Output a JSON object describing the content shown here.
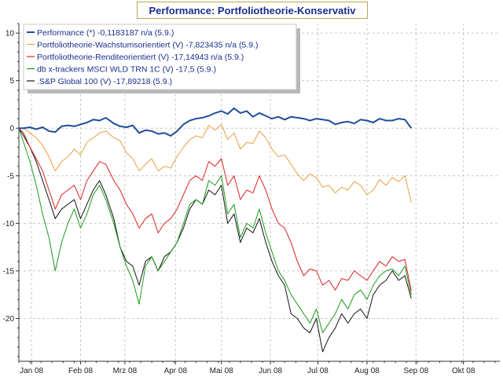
{
  "chart_data": {
    "type": "line",
    "title": "Performance: Portfoliotheorie-Konservativ",
    "xlabel": "",
    "ylabel": "",
    "x_range": [
      "2008-01-01",
      "2008-10-31"
    ],
    "ylim": [
      -24.5,
      11
    ],
    "yticks": [
      10,
      5,
      0,
      -5,
      -10,
      -15,
      -20
    ],
    "xticks": [
      {
        "label": "Jan 08",
        "date": "2008-01-09"
      },
      {
        "label": "Feb 08",
        "date": "2008-02-09"
      },
      {
        "label": "Mrz 08",
        "date": "2008-03-08"
      },
      {
        "label": "Apr 08",
        "date": "2008-04-09"
      },
      {
        "label": "Mai 08",
        "date": "2008-05-08"
      },
      {
        "label": "Jun 08",
        "date": "2008-06-08"
      },
      {
        "label": "Jul 08",
        "date": "2008-07-08"
      },
      {
        "label": "Aug 08",
        "date": "2008-08-08"
      },
      {
        "label": "Sep 08",
        "date": "2008-09-08"
      },
      {
        "label": "Okt 08",
        "date": "2008-10-08"
      }
    ],
    "grid": true,
    "legend_position": "top-left",
    "series": [
      {
        "name": "Performance (*) -0,1183187 n/a (5.9.)",
        "color": "#1f4e9c",
        "x": [
          "2008-01-01",
          "2008-01-04",
          "2008-01-08",
          "2008-01-12",
          "2008-01-16",
          "2008-01-20",
          "2008-01-24",
          "2008-01-28",
          "2008-02-01",
          "2008-02-05",
          "2008-02-09",
          "2008-02-13",
          "2008-02-17",
          "2008-02-21",
          "2008-02-25",
          "2008-03-01",
          "2008-03-05",
          "2008-03-09",
          "2008-03-13",
          "2008-03-17",
          "2008-03-21",
          "2008-03-25",
          "2008-03-29",
          "2008-04-02",
          "2008-04-06",
          "2008-04-10",
          "2008-04-14",
          "2008-04-18",
          "2008-04-22",
          "2008-04-26",
          "2008-04-30",
          "2008-05-04",
          "2008-05-08",
          "2008-05-12",
          "2008-05-16",
          "2008-05-20",
          "2008-05-24",
          "2008-05-28",
          "2008-06-01",
          "2008-06-05",
          "2008-06-09",
          "2008-06-13",
          "2008-06-17",
          "2008-06-21",
          "2008-06-25",
          "2008-06-29",
          "2008-07-03",
          "2008-07-07",
          "2008-07-11",
          "2008-07-15",
          "2008-07-19",
          "2008-07-23",
          "2008-07-27",
          "2008-07-31",
          "2008-08-04",
          "2008-08-08",
          "2008-08-12",
          "2008-08-16",
          "2008-08-20",
          "2008-08-24",
          "2008-08-28",
          "2008-09-01",
          "2008-09-05"
        ],
        "y": [
          0,
          0,
          0.1,
          -0.1,
          0.1,
          -0.3,
          -0.4,
          0.2,
          0.3,
          0.2,
          0.4,
          0.6,
          0.9,
          0.8,
          1.1,
          0.5,
          0.2,
          0.1,
          0.3,
          -0.5,
          -0.2,
          -0.3,
          -0.6,
          -0.5,
          -0.8,
          -0.3,
          0.4,
          0.8,
          1.0,
          1.1,
          1.3,
          1.6,
          1.8,
          1.5,
          2.1,
          1.6,
          1.8,
          1.2,
          1.6,
          1.3,
          1.0,
          1.2,
          0.9,
          1.2,
          1.1,
          1.0,
          0.8,
          1.0,
          0.9,
          0.8,
          0.4,
          0.6,
          0.7,
          0.5,
          0.9,
          0.8,
          0.6,
          1.0,
          0.8,
          0.8,
          1.0,
          0.9,
          0
        ]
      },
      {
        "name": "Portfoliotheorie-Wachstumsorientiert (V) -7,823435 n/a (5.9.)",
        "color": "#e8a040",
        "x": [
          "2008-01-01",
          "2008-01-04",
          "2008-01-08",
          "2008-01-12",
          "2008-01-16",
          "2008-01-20",
          "2008-01-24",
          "2008-01-28",
          "2008-02-01",
          "2008-02-05",
          "2008-02-09",
          "2008-02-13",
          "2008-02-17",
          "2008-02-21",
          "2008-02-25",
          "2008-03-01",
          "2008-03-05",
          "2008-03-09",
          "2008-03-13",
          "2008-03-17",
          "2008-03-21",
          "2008-03-25",
          "2008-03-29",
          "2008-04-02",
          "2008-04-06",
          "2008-04-10",
          "2008-04-14",
          "2008-04-18",
          "2008-04-22",
          "2008-04-26",
          "2008-04-30",
          "2008-05-04",
          "2008-05-08",
          "2008-05-12",
          "2008-05-16",
          "2008-05-20",
          "2008-05-24",
          "2008-05-28",
          "2008-06-01",
          "2008-06-05",
          "2008-06-09",
          "2008-06-13",
          "2008-06-17",
          "2008-06-21",
          "2008-06-25",
          "2008-06-29",
          "2008-07-03",
          "2008-07-07",
          "2008-07-11",
          "2008-07-15",
          "2008-07-19",
          "2008-07-23",
          "2008-07-27",
          "2008-07-31",
          "2008-08-04",
          "2008-08-08",
          "2008-08-12",
          "2008-08-16",
          "2008-08-20",
          "2008-08-24",
          "2008-08-28",
          "2008-09-01",
          "2008-09-05"
        ],
        "y": [
          0,
          0,
          -0.5,
          -1.0,
          -1.8,
          -3.0,
          -4.5,
          -3.5,
          -3.0,
          -2.2,
          -2.8,
          -1.5,
          -1.0,
          -0.5,
          -0.3,
          -1.0,
          -1.3,
          -2.6,
          -3.2,
          -4.5,
          -3.8,
          -3.2,
          -4.5,
          -4.0,
          -4.2,
          -3.0,
          -2.0,
          -1.2,
          -0.8,
          -1.0,
          0.3,
          -0.2,
          0.4,
          -1.2,
          -0.5,
          -2.2,
          -1.5,
          -1.6,
          -0.3,
          -1.0,
          -2.2,
          -3.0,
          -2.8,
          -3.8,
          -4.8,
          -5.5,
          -4.8,
          -5.2,
          -6.2,
          -6.0,
          -6.8,
          -6.2,
          -6.5,
          -5.6,
          -6.0,
          -7.0,
          -6.5,
          -5.4,
          -6.0,
          -5.2,
          -5.6,
          -5.0,
          -7.8
        ]
      },
      {
        "name": "Portfoliotheorie-Renditeorientiert (V) -17,14943 n/a (5.9.)",
        "color": "#e02020",
        "x": [
          "2008-01-01",
          "2008-01-04",
          "2008-01-08",
          "2008-01-12",
          "2008-01-16",
          "2008-01-20",
          "2008-01-24",
          "2008-01-28",
          "2008-02-01",
          "2008-02-05",
          "2008-02-09",
          "2008-02-13",
          "2008-02-17",
          "2008-02-21",
          "2008-02-25",
          "2008-03-01",
          "2008-03-05",
          "2008-03-09",
          "2008-03-13",
          "2008-03-17",
          "2008-03-21",
          "2008-03-25",
          "2008-03-29",
          "2008-04-02",
          "2008-04-06",
          "2008-04-10",
          "2008-04-14",
          "2008-04-18",
          "2008-04-22",
          "2008-04-26",
          "2008-04-30",
          "2008-05-04",
          "2008-05-08",
          "2008-05-12",
          "2008-05-16",
          "2008-05-20",
          "2008-05-24",
          "2008-05-28",
          "2008-06-01",
          "2008-06-05",
          "2008-06-09",
          "2008-06-13",
          "2008-06-17",
          "2008-06-21",
          "2008-06-25",
          "2008-06-29",
          "2008-07-03",
          "2008-07-07",
          "2008-07-11",
          "2008-07-15",
          "2008-07-19",
          "2008-07-23",
          "2008-07-27",
          "2008-07-31",
          "2008-08-04",
          "2008-08-08",
          "2008-08-12",
          "2008-08-16",
          "2008-08-20",
          "2008-08-24",
          "2008-08-28",
          "2008-09-01",
          "2008-09-05"
        ],
        "y": [
          0,
          -0.5,
          -2.0,
          -3.2,
          -4.5,
          -6.5,
          -8.5,
          -7.0,
          -6.5,
          -6.0,
          -7.5,
          -5.5,
          -4.5,
          -3.5,
          -3.8,
          -5.5,
          -6.5,
          -8.0,
          -9.0,
          -10.5,
          -9.5,
          -9.0,
          -11.0,
          -10.0,
          -9.5,
          -8.5,
          -7.0,
          -5.5,
          -5.0,
          -5.5,
          -3.5,
          -4.0,
          -3.2,
          -6.0,
          -5.0,
          -7.5,
          -6.5,
          -6.8,
          -5.0,
          -6.5,
          -8.5,
          -10.0,
          -10.5,
          -12.0,
          -14.0,
          -15.5,
          -14.8,
          -15.0,
          -16.5,
          -16.0,
          -17.0,
          -15.8,
          -16.0,
          -15.0,
          -15.5,
          -16.0,
          -15.0,
          -14.0,
          -14.5,
          -13.5,
          -14.0,
          -13.8,
          -17.1
        ]
      },
      {
        "name": "db x-trackers MSCI WLD TRN 1C (V) -17,5 (5.9.)",
        "color": "#1a9a1a",
        "x": [
          "2008-01-01",
          "2008-01-04",
          "2008-01-08",
          "2008-01-12",
          "2008-01-16",
          "2008-01-20",
          "2008-01-24",
          "2008-01-28",
          "2008-02-01",
          "2008-02-05",
          "2008-02-09",
          "2008-02-13",
          "2008-02-17",
          "2008-02-21",
          "2008-02-25",
          "2008-03-01",
          "2008-03-05",
          "2008-03-09",
          "2008-03-13",
          "2008-03-17",
          "2008-03-21",
          "2008-03-25",
          "2008-03-29",
          "2008-04-02",
          "2008-04-06",
          "2008-04-10",
          "2008-04-14",
          "2008-04-18",
          "2008-04-22",
          "2008-04-26",
          "2008-04-30",
          "2008-05-04",
          "2008-05-08",
          "2008-05-12",
          "2008-05-16",
          "2008-05-20",
          "2008-05-24",
          "2008-05-28",
          "2008-06-01",
          "2008-06-05",
          "2008-06-09",
          "2008-06-13",
          "2008-06-17",
          "2008-06-21",
          "2008-06-25",
          "2008-06-29",
          "2008-07-03",
          "2008-07-07",
          "2008-07-11",
          "2008-07-15",
          "2008-07-19",
          "2008-07-23",
          "2008-07-27",
          "2008-07-31",
          "2008-08-04",
          "2008-08-08",
          "2008-08-12",
          "2008-08-16",
          "2008-08-20",
          "2008-08-24",
          "2008-08-28",
          "2008-09-01",
          "2008-09-05"
        ],
        "y": [
          0,
          -1.5,
          -3.5,
          -6.0,
          -9.0,
          -11.5,
          -15.0,
          -12.0,
          -10.0,
          -8.5,
          -10.5,
          -9.0,
          -7.0,
          -6.0,
          -7.5,
          -10.0,
          -12.5,
          -14.5,
          -16.0,
          -18.5,
          -14.5,
          -13.5,
          -15.0,
          -14.0,
          -13.0,
          -12.0,
          -10.0,
          -8.0,
          -7.5,
          -8.0,
          -5.5,
          -6.0,
          -5.0,
          -9.0,
          -8.0,
          -11.5,
          -10.0,
          -10.5,
          -8.5,
          -11.0,
          -13.0,
          -15.0,
          -16.0,
          -17.5,
          -18.5,
          -19.5,
          -20.5,
          -19.0,
          -21.5,
          -20.5,
          -19.5,
          -18.0,
          -19.0,
          -17.5,
          -17.0,
          -18.0,
          -16.5,
          -15.5,
          -15.0,
          -14.8,
          -15.5,
          -14.5,
          -17.5
        ]
      },
      {
        "name": ".S&P Global 100 (V) -17,89218 (5.9.)",
        "color": "#111111",
        "x": [
          "2008-01-01",
          "2008-01-04",
          "2008-01-08",
          "2008-01-12",
          "2008-01-16",
          "2008-01-20",
          "2008-01-24",
          "2008-01-28",
          "2008-02-01",
          "2008-02-05",
          "2008-02-09",
          "2008-02-13",
          "2008-02-17",
          "2008-02-21",
          "2008-02-25",
          "2008-03-01",
          "2008-03-05",
          "2008-03-09",
          "2008-03-13",
          "2008-03-17",
          "2008-03-21",
          "2008-03-25",
          "2008-03-29",
          "2008-04-02",
          "2008-04-06",
          "2008-04-10",
          "2008-04-14",
          "2008-04-18",
          "2008-04-22",
          "2008-04-26",
          "2008-04-30",
          "2008-05-04",
          "2008-05-08",
          "2008-05-12",
          "2008-05-16",
          "2008-05-20",
          "2008-05-24",
          "2008-05-28",
          "2008-06-01",
          "2008-06-05",
          "2008-06-09",
          "2008-06-13",
          "2008-06-17",
          "2008-06-21",
          "2008-06-25",
          "2008-06-29",
          "2008-07-03",
          "2008-07-07",
          "2008-07-11",
          "2008-07-15",
          "2008-07-19",
          "2008-07-23",
          "2008-07-27",
          "2008-07-31",
          "2008-08-04",
          "2008-08-08",
          "2008-08-12",
          "2008-08-16",
          "2008-08-20",
          "2008-08-24",
          "2008-08-28",
          "2008-09-01",
          "2008-09-05"
        ],
        "y": [
          0,
          -0.8,
          -2.0,
          -3.5,
          -5.5,
          -7.5,
          -9.5,
          -8.5,
          -8.0,
          -7.5,
          -9.5,
          -8.0,
          -6.5,
          -5.5,
          -7.0,
          -9.5,
          -12.5,
          -14.0,
          -14.5,
          -16.5,
          -14.0,
          -13.5,
          -15.0,
          -13.5,
          -13.0,
          -12.0,
          -10.5,
          -8.5,
          -7.5,
          -8.0,
          -6.5,
          -7.0,
          -6.0,
          -10.0,
          -9.0,
          -12.0,
          -10.5,
          -11.0,
          -9.5,
          -12.0,
          -14.0,
          -15.5,
          -16.5,
          -19.5,
          -20.0,
          -21.0,
          -21.5,
          -20.0,
          -23.5,
          -22.0,
          -21.0,
          -19.5,
          -20.5,
          -19.5,
          -19.0,
          -20.0,
          -17.5,
          -16.5,
          -16.0,
          -15.0,
          -16.0,
          -15.5,
          -17.9
        ]
      }
    ]
  }
}
